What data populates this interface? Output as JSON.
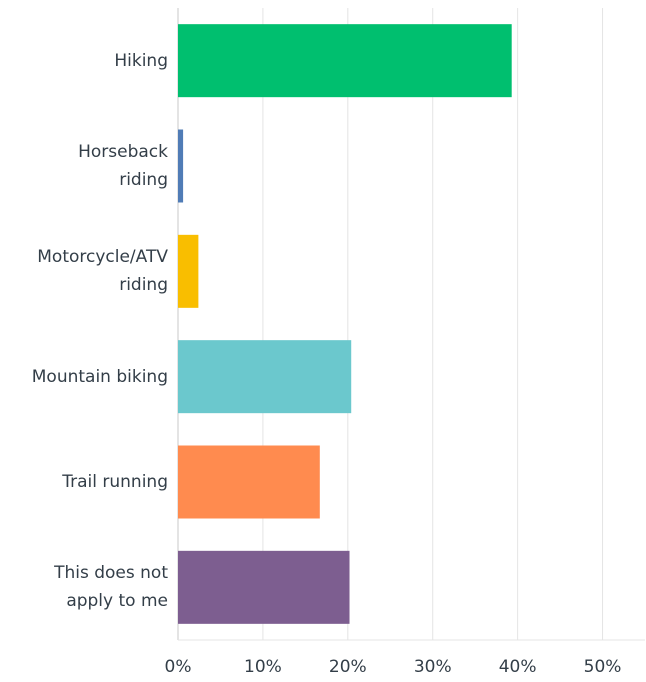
{
  "chart_data": {
    "type": "hbar",
    "categories": [
      "Hiking",
      "Horseback\nriding",
      "Motorcycle/ATV\nriding",
      "Mountain biking",
      "Trail running",
      "This does not\napply to me"
    ],
    "values": [
      39.3,
      0.6,
      2.4,
      20.4,
      16.7,
      20.2
    ],
    "colors": [
      "#00bf6f",
      "#507cb6",
      "#f9be00",
      "#6bc8cd",
      "#ff8b4f",
      "#7d5e90"
    ],
    "xlim": [
      0,
      55
    ],
    "xticks": [
      {
        "value": 0,
        "label": "0%"
      },
      {
        "value": 10,
        "label": "10%"
      },
      {
        "value": 20,
        "label": "20%"
      },
      {
        "value": 30,
        "label": "30%"
      },
      {
        "value": 40,
        "label": "40%"
      },
      {
        "value": 50,
        "label": "50%"
      }
    ],
    "grid": true
  }
}
